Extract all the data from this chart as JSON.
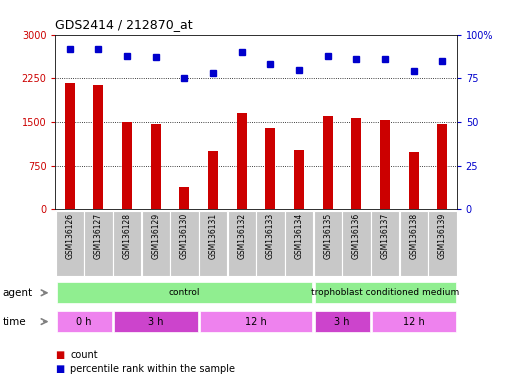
{
  "title": "GDS2414 / 212870_at",
  "samples": [
    "GSM136126",
    "GSM136127",
    "GSM136128",
    "GSM136129",
    "GSM136130",
    "GSM136131",
    "GSM136132",
    "GSM136133",
    "GSM136134",
    "GSM136135",
    "GSM136136",
    "GSM136137",
    "GSM136138",
    "GSM136139"
  ],
  "counts": [
    2175,
    2140,
    1500,
    1460,
    380,
    1000,
    1650,
    1390,
    1020,
    1600,
    1575,
    1540,
    990,
    1470
  ],
  "percentile": [
    92,
    92,
    88,
    87,
    75,
    78,
    90,
    83,
    80,
    88,
    86,
    86,
    79,
    85
  ],
  "count_ylim": [
    0,
    3000
  ],
  "percentile_ylim": [
    0,
    100
  ],
  "count_yticks": [
    0,
    750,
    1500,
    2250,
    3000
  ],
  "percentile_yticks": [
    0,
    25,
    50,
    75,
    100
  ],
  "percentile_labels": [
    "0",
    "25",
    "50",
    "75",
    "100%"
  ],
  "bar_color": "#cc0000",
  "dot_color": "#0000cc",
  "agent_control_color": "#90ee90",
  "time_color": "#ee82ee",
  "time_alt_color": "#cc44cc",
  "agent_row": [
    {
      "label": "control",
      "start": 0,
      "end": 9
    },
    {
      "label": "trophoblast conditioned medium",
      "start": 9,
      "end": 14
    }
  ],
  "time_row": [
    {
      "label": "0 h",
      "start": 0,
      "end": 2
    },
    {
      "label": "3 h",
      "start": 2,
      "end": 5
    },
    {
      "label": "12 h",
      "start": 5,
      "end": 9
    },
    {
      "label": "3 h",
      "start": 9,
      "end": 11
    },
    {
      "label": "12 h",
      "start": 11,
      "end": 14
    }
  ],
  "legend_count_label": "count",
  "legend_pct_label": "percentile rank within the sample",
  "bar_width": 0.35,
  "label_gray": "#c8c8c8",
  "spine_color": "#888888"
}
